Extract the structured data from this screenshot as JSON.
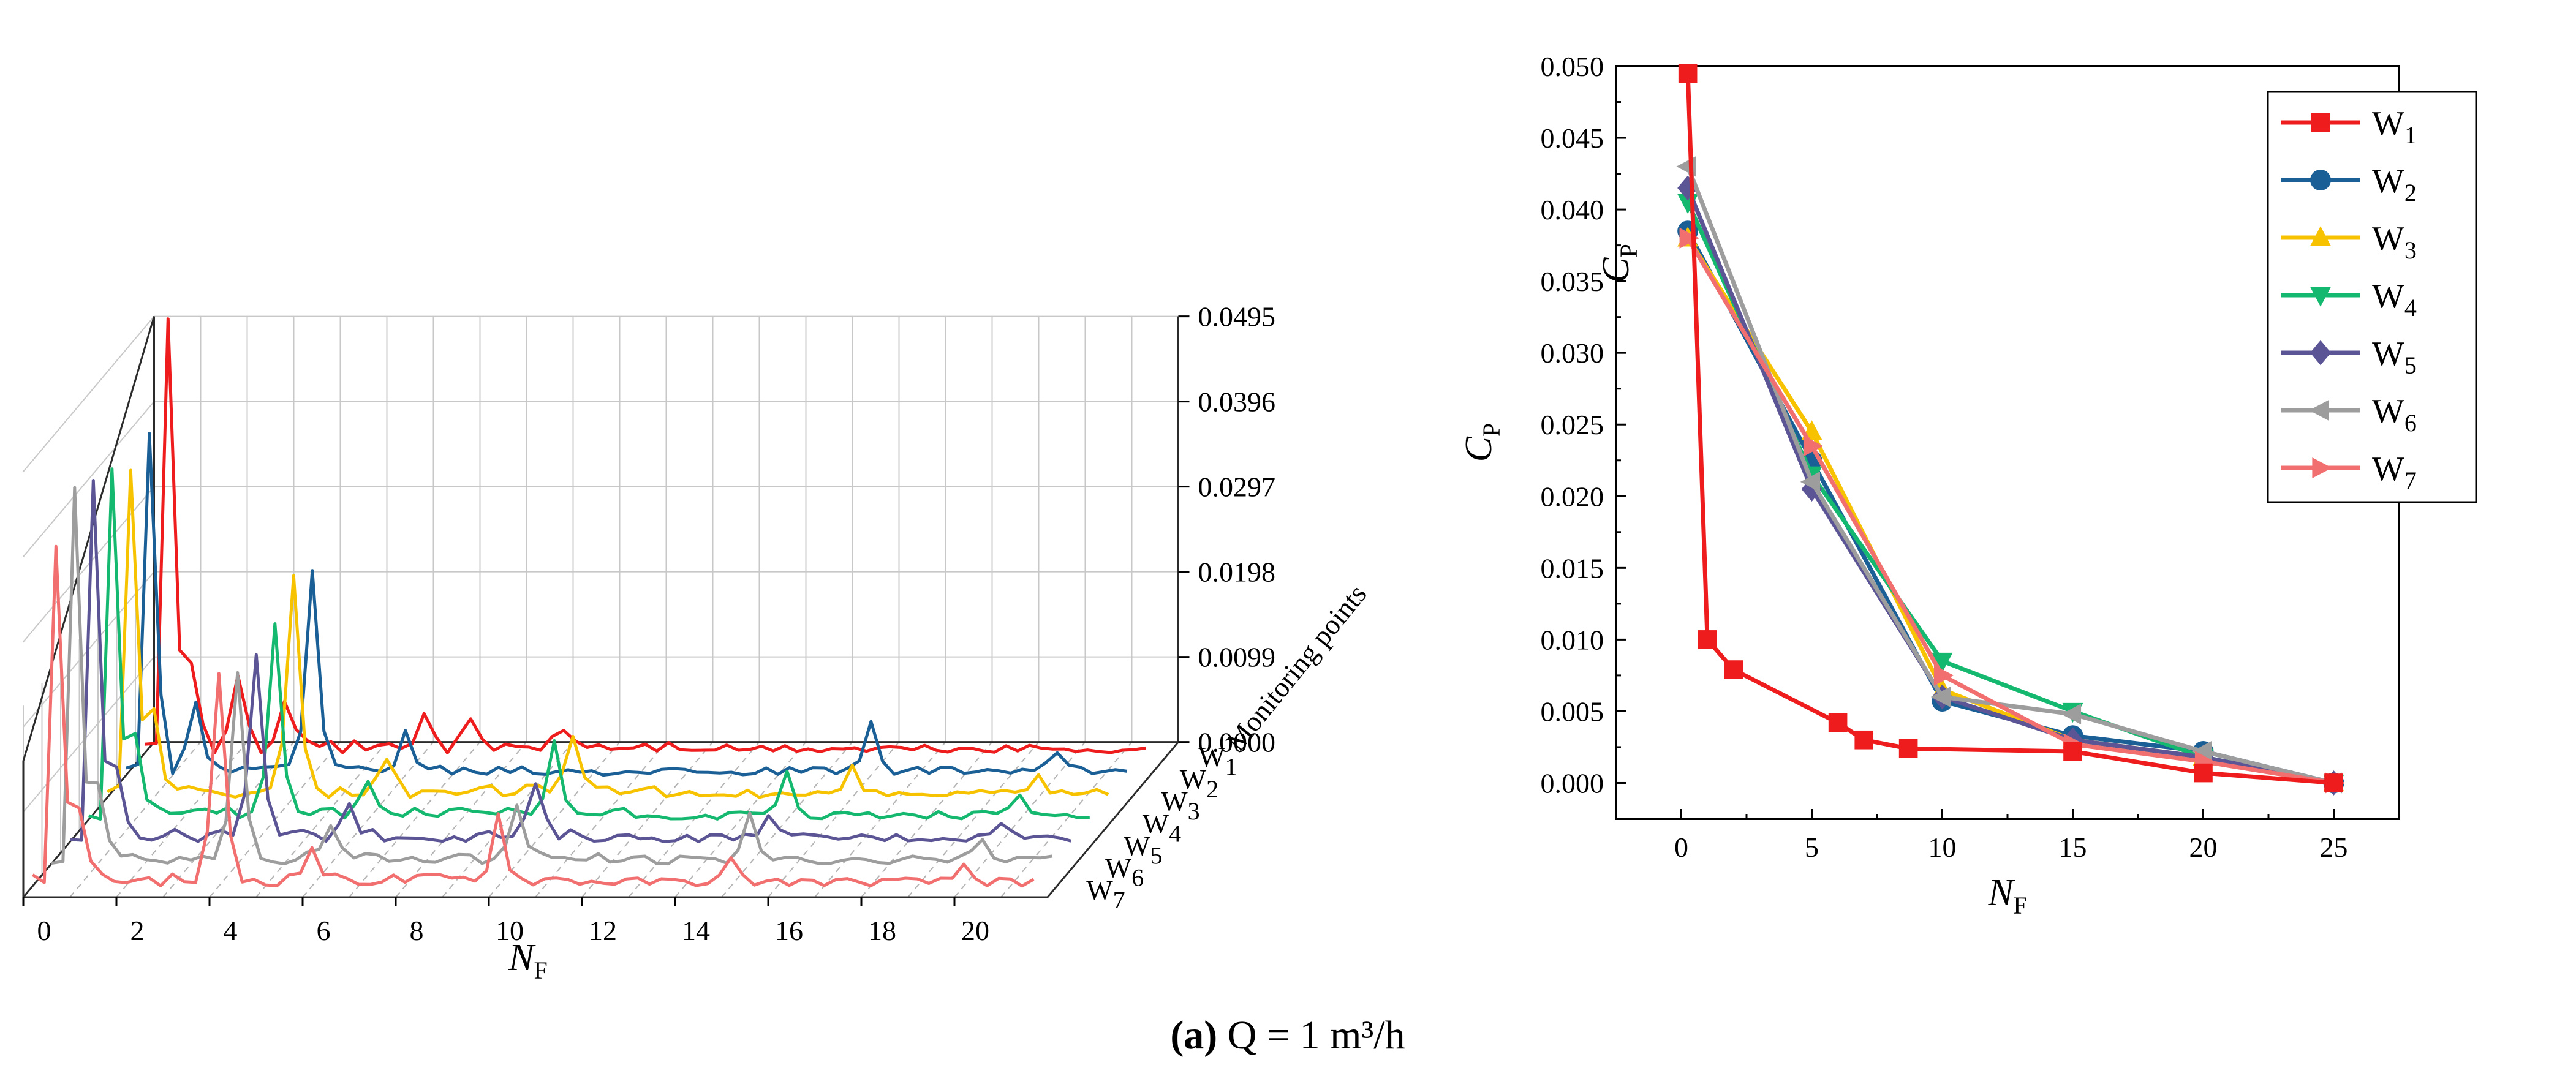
{
  "caption": {
    "label": "(a)",
    "text": "Q = 1 m³/h"
  },
  "colors": {
    "W1": "#ee1c1c",
    "W2": "#1a5f96",
    "W3": "#f7c300",
    "W4": "#15b86f",
    "W5": "#5b5595",
    "W6": "#9d9d9d",
    "W7": "#f26f70"
  },
  "chart_data": [
    {
      "type": "line",
      "subtype": "3d-waterfall",
      "title": "",
      "xlabel": "N_F",
      "xlabel_main": "N",
      "xlabel_sub": "F",
      "ylabel": "Monitoring points",
      "zlabel": "C_P",
      "zlabel_main": "C",
      "zlabel_sub": "P",
      "xlim": [
        0,
        22
      ],
      "zlim": [
        0,
        0.0495
      ],
      "x_ticks": [
        0,
        2,
        4,
        6,
        8,
        10,
        12,
        14,
        16,
        18,
        20
      ],
      "x_tick_labels": [
        "0",
        "2",
        "4",
        "6",
        "8",
        "10",
        "12",
        "14",
        "16",
        "18",
        "20"
      ],
      "z_ticks": [
        0,
        0.0099,
        0.0198,
        0.0297,
        0.0396,
        0.0495
      ],
      "z_tick_labels": [
        "0.0000",
        "0.0099",
        "0.0198",
        "0.0297",
        "0.0396",
        "0.0495"
      ],
      "x_step": 0.25,
      "series": [
        {
          "name": "W1",
          "sub": "1",
          "label": "W",
          "peaks": [
            [
              0.5,
              0.0495
            ],
            [
              1.0,
              0.01
            ],
            [
              2.0,
              0.0079
            ],
            [
              3.0,
              0.006
            ],
            [
              6.0,
              0.0042
            ],
            [
              7.0,
              0.003
            ],
            [
              9.0,
              0.0024
            ]
          ],
          "noise": 0.0012
        },
        {
          "name": "W2",
          "sub": "2",
          "label": "W",
          "peaks": [
            [
              0.5,
              0.0385
            ],
            [
              1.5,
              0.008
            ],
            [
              4.0,
              0.0225
            ],
            [
              6.0,
              0.0048
            ],
            [
              16.0,
              0.0055
            ],
            [
              20.0,
              0.0022
            ]
          ],
          "noise": 0.0012
        },
        {
          "name": "W3",
          "sub": "3",
          "label": "W",
          "peaks": [
            [
              0.5,
              0.038
            ],
            [
              1.0,
              0.009
            ],
            [
              4.0,
              0.0245
            ],
            [
              6.0,
              0.004
            ],
            [
              10.0,
              0.0065
            ],
            [
              16.0,
              0.003
            ],
            [
              20.0,
              0.002
            ]
          ],
          "noise": 0.0012
        },
        {
          "name": "W4",
          "sub": "4",
          "label": "W",
          "peaks": [
            [
              0.5,
              0.0405
            ],
            [
              1.0,
              0.009
            ],
            [
              4.0,
              0.0215
            ],
            [
              6.0,
              0.004
            ],
            [
              10.0,
              0.0085
            ],
            [
              15.0,
              0.005
            ],
            [
              20.0,
              0.002
            ]
          ],
          "noise": 0.0012
        },
        {
          "name": "W5",
          "sub": "5",
          "label": "W",
          "peaks": [
            [
              0.5,
              0.0415
            ],
            [
              1.0,
              0.008
            ],
            [
              4.0,
              0.0205
            ],
            [
              6.0,
              0.004
            ],
            [
              10.0,
              0.006
            ],
            [
              15.0,
              0.003
            ],
            [
              20.0,
              0.002
            ]
          ],
          "noise": 0.0012
        },
        {
          "name": "W6",
          "sub": "6",
          "label": "W",
          "peaks": [
            [
              0.5,
              0.043
            ],
            [
              1.0,
              0.009
            ],
            [
              4.0,
              0.021
            ],
            [
              6.0,
              0.004
            ],
            [
              10.0,
              0.006
            ],
            [
              15.0,
              0.0055
            ],
            [
              20.0,
              0.0025
            ]
          ],
          "noise": 0.0012
        },
        {
          "name": "W7",
          "sub": "7",
          "label": "W",
          "peaks": [
            [
              0.5,
              0.0385
            ],
            [
              1.0,
              0.009
            ],
            [
              4.0,
              0.0235
            ],
            [
              6.0,
              0.004
            ],
            [
              10.0,
              0.0075
            ],
            [
              15.0,
              0.0025
            ],
            [
              20.0,
              0.002
            ]
          ],
          "noise": 0.0012
        }
      ]
    },
    {
      "type": "line",
      "title": "",
      "xlabel": "N_F",
      "xlabel_main": "N",
      "xlabel_sub": "F",
      "ylabel": "C_P",
      "ylabel_main": "C",
      "ylabel_sub": "P",
      "xlim": [
        -2.5,
        27.5
      ],
      "ylim": [
        -0.0025,
        0.05
      ],
      "x_ticks": [
        0,
        5,
        10,
        15,
        20,
        25
      ],
      "x_tick_labels": [
        "0",
        "5",
        "10",
        "15",
        "20",
        "25"
      ],
      "y_ticks": [
        0,
        0.005,
        0.01,
        0.015,
        0.02,
        0.025,
        0.03,
        0.035,
        0.04,
        0.045,
        0.05
      ],
      "y_tick_labels": [
        "0.000",
        "0.005",
        "0.010",
        "0.015",
        "0.020",
        "0.025",
        "0.030",
        "0.035",
        "0.040",
        "0.045",
        "0.050"
      ],
      "legend": "top-right",
      "series": [
        {
          "name": "W1",
          "label": "W",
          "sub": "1",
          "marker": "square",
          "x": [
            0.25,
            1,
            2,
            6,
            7,
            8.7,
            15,
            20,
            25
          ],
          "y": [
            0.0495,
            0.01,
            0.0079,
            0.0042,
            0.003,
            0.0024,
            0.0022,
            0.0007,
            0
          ]
        },
        {
          "name": "W2",
          "label": "W",
          "sub": "2",
          "marker": "circle",
          "x": [
            0.25,
            5,
            10,
            15,
            20,
            25
          ],
          "y": [
            0.0385,
            0.0225,
            0.0057,
            0.0033,
            0.0022,
            0
          ]
        },
        {
          "name": "W3",
          "label": "W",
          "sub": "3",
          "marker": "triangle-up",
          "x": [
            0.25,
            5,
            10,
            15,
            20,
            25
          ],
          "y": [
            0.038,
            0.0245,
            0.0065,
            0.003,
            0.0018,
            0
          ]
        },
        {
          "name": "W4",
          "label": "W",
          "sub": "4",
          "marker": "triangle-down",
          "x": [
            0.25,
            5,
            10,
            15,
            20,
            25
          ],
          "y": [
            0.0405,
            0.0215,
            0.0085,
            0.005,
            0.0018,
            0
          ]
        },
        {
          "name": "W5",
          "label": "W",
          "sub": "5",
          "marker": "diamond",
          "x": [
            0.25,
            5,
            10,
            15,
            20,
            25
          ],
          "y": [
            0.0415,
            0.0205,
            0.006,
            0.003,
            0.0018,
            0
          ]
        },
        {
          "name": "W6",
          "label": "W",
          "sub": "6",
          "marker": "triangle-left",
          "x": [
            0.25,
            5,
            10,
            15,
            20,
            25
          ],
          "y": [
            0.043,
            0.021,
            0.006,
            0.0048,
            0.0022,
            0
          ]
        },
        {
          "name": "W7",
          "label": "W",
          "sub": "7",
          "marker": "triangle-right",
          "x": [
            0.25,
            5,
            10,
            15,
            20,
            25
          ],
          "y": [
            0.038,
            0.0235,
            0.0075,
            0.0027,
            0.0015,
            0
          ]
        }
      ]
    }
  ]
}
